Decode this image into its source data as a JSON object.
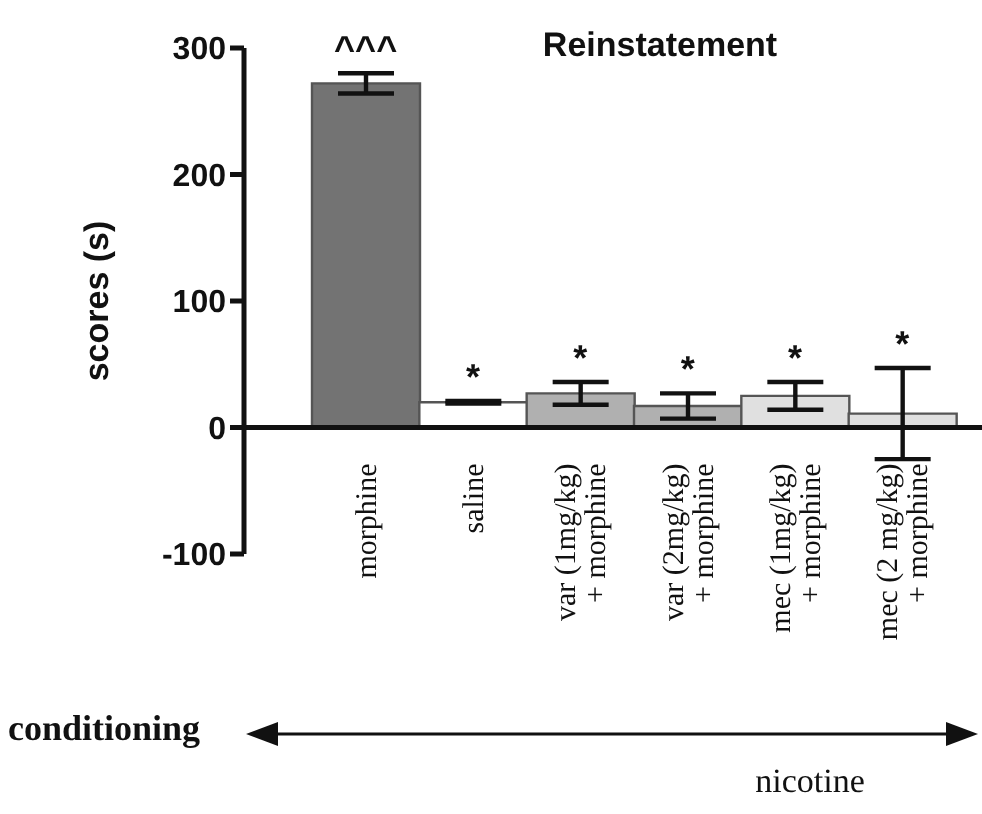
{
  "chart_data": {
    "type": "bar",
    "title": "Reinstatement",
    "ylabel": "scores (s)",
    "categories": [
      "morphine",
      "saline",
      "var (1mg/kg)\n+ morphine",
      "var (2mg/kg)\n+ morphine",
      "mec (1mg/kg)\n+ morphine",
      "mec (2 mg/kg)\n+ morphine"
    ],
    "values": [
      272,
      20,
      27,
      17,
      25,
      11
    ],
    "errors": [
      8,
      1,
      9,
      10,
      11,
      36
    ],
    "colors": [
      "#737373",
      "#ffffff",
      "#b0b0b0",
      "#b0b0b0",
      "#e0e0e0",
      "#e0e0e0"
    ],
    "ylim": [
      -100,
      300
    ],
    "yticks": [
      -100,
      0,
      100,
      200,
      300
    ],
    "grid": false,
    "legend": false,
    "annotations": [
      {
        "text": "^^^",
        "x": "morphine",
        "y": 280
      },
      {
        "text": "*",
        "x": "saline",
        "y": 21
      },
      {
        "text": "*",
        "x": "var (1mg/kg)\n+ morphine",
        "y": 36
      },
      {
        "text": "*",
        "x": "var (2mg/kg)\n+ morphine",
        "y": 27
      },
      {
        "text": "*",
        "x": "mec (1mg/kg)\n+ morphine",
        "y": 36
      },
      {
        "text": "*",
        "x": "mec (2 mg/kg)\n+ morphine",
        "y": 47
      },
      "conditioning",
      "nicotine"
    ]
  }
}
